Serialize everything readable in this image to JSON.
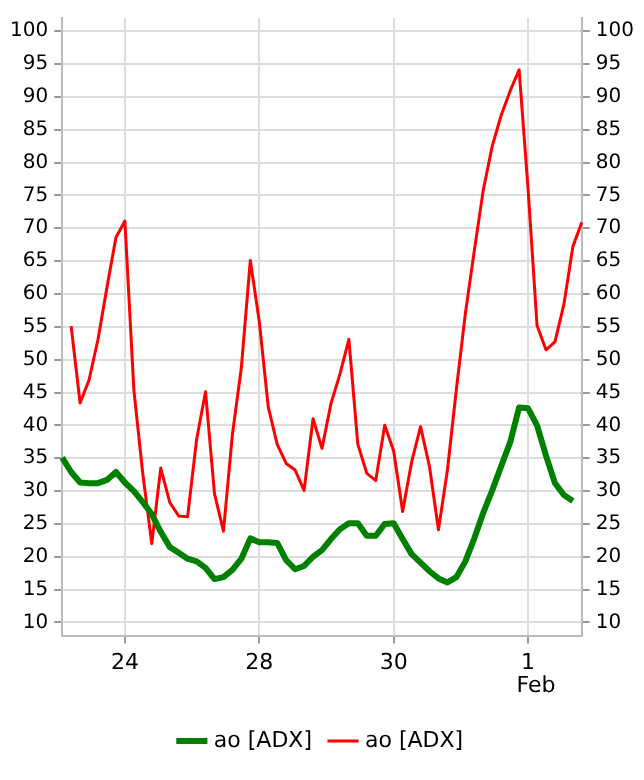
{
  "chart_data": {
    "type": "line",
    "categories": [
      null,
      null,
      null,
      null,
      null,
      null,
      null,
      "24",
      null,
      null,
      null,
      null,
      null,
      null,
      null,
      null,
      null,
      null,
      null,
      null,
      null,
      null,
      "28",
      null,
      null,
      null,
      null,
      null,
      null,
      null,
      null,
      null,
      null,
      null,
      null,
      null,
      null,
      "30",
      null,
      null,
      null,
      null,
      null,
      null,
      null,
      null,
      null,
      null,
      null,
      null,
      null,
      null,
      "1",
      null,
      null,
      null,
      null,
      null,
      null
    ],
    "ylim": [
      8,
      102
    ],
    "yticks": [
      10,
      15,
      20,
      25,
      30,
      35,
      40,
      45,
      50,
      55,
      60,
      65,
      70,
      75,
      80,
      85,
      90,
      95,
      100
    ],
    "y2lim": [
      8,
      102
    ],
    "y2ticks": [
      10,
      15,
      20,
      25,
      30,
      35,
      40,
      45,
      50,
      55,
      60,
      65,
      70,
      75,
      80,
      85,
      90,
      95,
      100
    ],
    "grid": true,
    "legend": "bottom",
    "line_style": "solid",
    "annotations": [
      "Feb"
    ],
    "series": [
      {
        "name": "ао [ADX]",
        "color": "#008000",
        "values": [
          35.1,
          32.9,
          31.3,
          31.2,
          31.2,
          31.7,
          32.9,
          31.3,
          30,
          28.3,
          26.5,
          23.8,
          21.5,
          20.6,
          19.7,
          19.3,
          18.3,
          16.6,
          16.9,
          18,
          19.7,
          22.8,
          22.2,
          22.2,
          22.1,
          19.5,
          18.1,
          18.6,
          20,
          21,
          22.7,
          24.2,
          25.1,
          25.1,
          23.2,
          23.2,
          25,
          25.1,
          22.7,
          20.4,
          19.1,
          17.8,
          16.7,
          16.1,
          16.9,
          19.3,
          22.8,
          26.7,
          30.1,
          33.8,
          37.4,
          42.7,
          42.6,
          40,
          35.4,
          31.2,
          29.4,
          28.5,
          null
        ]
      },
      {
        "name": "ао [ADX]",
        "color": "#ff0000",
        "values": [
          null,
          55.1,
          43.4,
          46.9,
          53.1,
          61,
          68.6,
          71.1,
          45.4,
          32.6,
          22,
          33.5,
          28.3,
          26.2,
          26.1,
          37.8,
          45.1,
          29.6,
          23.9,
          38.6,
          48.8,
          65.1,
          55.8,
          42.8,
          37.1,
          34.2,
          33.2,
          30.1,
          41,
          36.5,
          43.3,
          47.8,
          53.1,
          37.1,
          32.7,
          31.6,
          40,
          36.1,
          26.9,
          34.4,
          39.8,
          33.7,
          24.1,
          33.2,
          45.5,
          57,
          66.6,
          75.8,
          82.5,
          87.2,
          90.9,
          94.1,
          76,
          55.2,
          51.5,
          52.7,
          58.4,
          67.2,
          70.9
        ]
      }
    ]
  }
}
